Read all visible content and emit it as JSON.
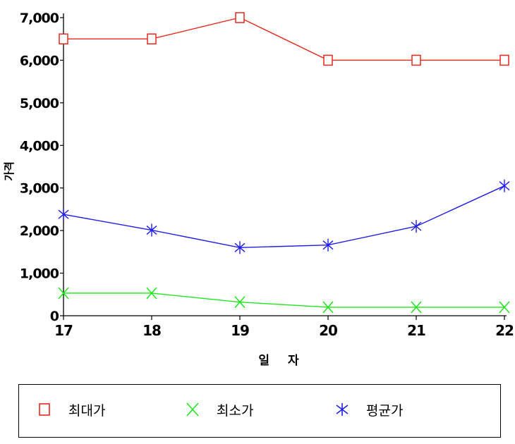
{
  "chart_data": {
    "type": "line",
    "xlabel": "일 자",
    "ylabel": "가격",
    "x": [
      17,
      18,
      19,
      20,
      21,
      22
    ],
    "ylim": [
      0,
      7000
    ],
    "yticks": [
      0,
      1000,
      2000,
      3000,
      4000,
      5000,
      6000,
      7000
    ],
    "ytick_labels": [
      "0",
      "1,000",
      "2,000",
      "3,000",
      "4,000",
      "5,000",
      "6,000",
      "7,000"
    ],
    "grid": false,
    "legend_position": "bottom",
    "series": [
      {
        "name": "최대가",
        "color": "#e8281e",
        "marker": "square",
        "values": [
          6500,
          6500,
          7000,
          6000,
          6000,
          6000
        ]
      },
      {
        "name": "최소가",
        "color": "#1ee61e",
        "marker": "x",
        "values": [
          530,
          530,
          320,
          200,
          200,
          200
        ]
      },
      {
        "name": "평균가",
        "color": "#1e1ee8",
        "marker": "star",
        "values": [
          2380,
          2010,
          1600,
          1660,
          2100,
          3050
        ]
      }
    ]
  }
}
